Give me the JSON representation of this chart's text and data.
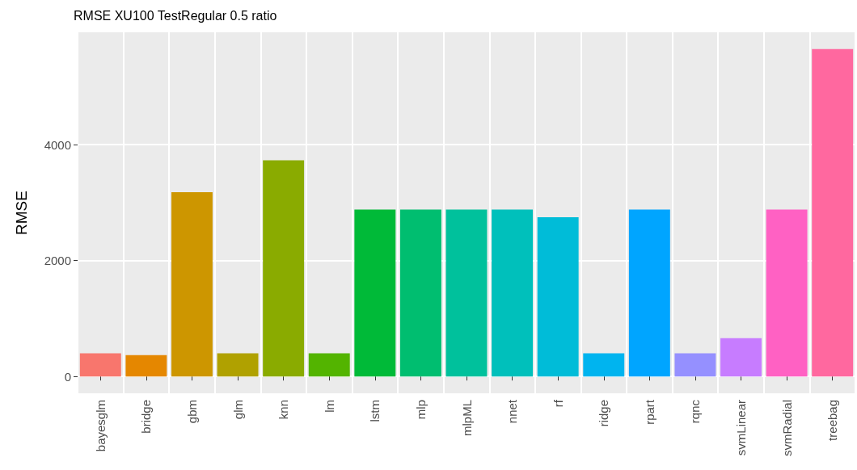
{
  "chart_data": {
    "type": "bar",
    "title": "RMSE XU100 TestRegular 0.5 ratio",
    "ylabel": "RMSE",
    "categories": [
      "bayesglm",
      "bridge",
      "gbm",
      "glm",
      "knn",
      "lm",
      "lstm",
      "mlp",
      "mlpML",
      "nnet",
      "rf",
      "ridge",
      "rpart",
      "rqnc",
      "svmLinear",
      "svmRadial",
      "treebag"
    ],
    "values": [
      400,
      370,
      3180,
      400,
      3730,
      400,
      2880,
      2880,
      2880,
      2880,
      2750,
      400,
      2880,
      400,
      660,
      2880,
      5650
    ],
    "colors": [
      "#F8766D",
      "#E58700",
      "#CD9600",
      "#B0A100",
      "#8AAB00",
      "#53B400",
      "#00BA38",
      "#00BE70",
      "#00C19C",
      "#00C0BB",
      "#00BCD8",
      "#00B4EF",
      "#00A5FF",
      "#9590FF",
      "#C77CFF",
      "#FF61C3",
      "#FF689F"
    ],
    "ylim": [
      -290,
      5940
    ],
    "yticks": [
      0,
      2000,
      4000
    ],
    "grid": true
  }
}
